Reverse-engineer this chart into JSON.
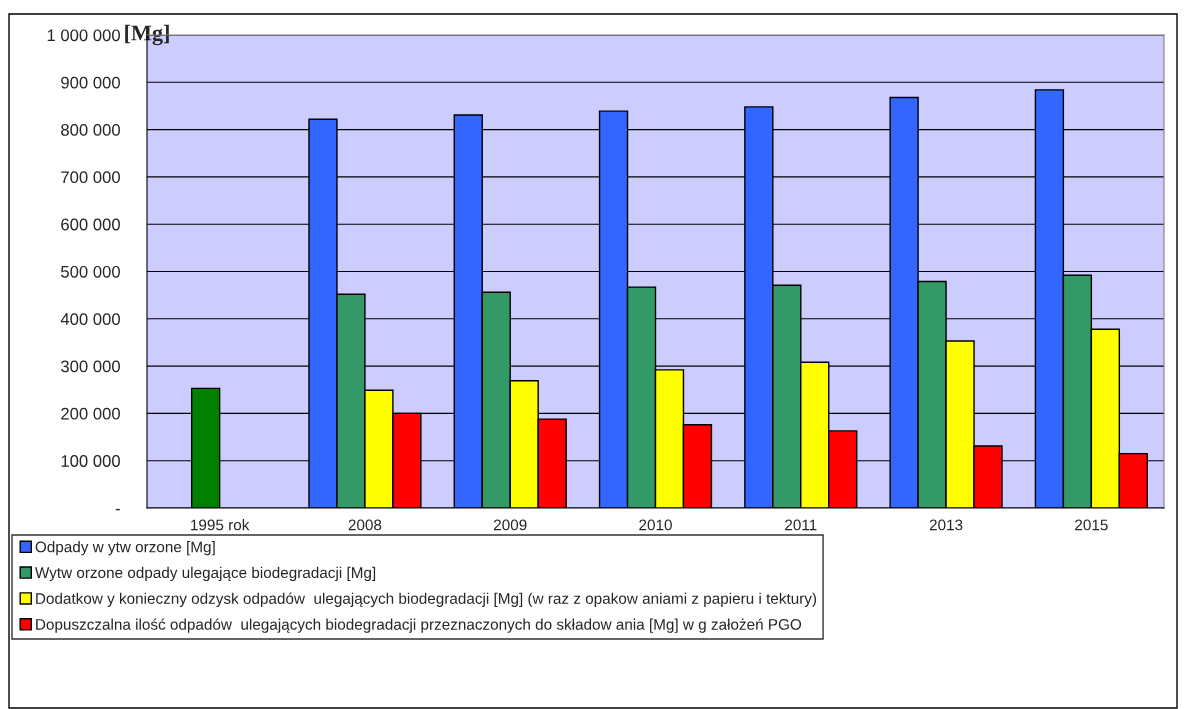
{
  "chart_data": {
    "type": "bar",
    "ylabel": "[Mg]",
    "categories": [
      "1995 rok",
      "2008",
      "2009",
      "2010",
      "2011",
      "2013",
      "2015"
    ],
    "series": [
      {
        "name": "Odpady w ytw orzone [Mg]",
        "color": "#3366ff",
        "values": [
          null,
          822000,
          831000,
          839000,
          848000,
          868000,
          884000
        ]
      },
      {
        "name": "Wytw orzone odpady ulegające biodegradacji [Mg]",
        "color": "#339966",
        "colors": [
          "#008000",
          "#339966",
          "#339966",
          "#339966",
          "#339966",
          "#339966",
          "#339966"
        ],
        "values": [
          253000,
          452000,
          456000,
          467000,
          471000,
          479000,
          492000
        ]
      },
      {
        "name": "Dodatkow y konieczny odzysk odpadów  ulegających biodegradacji [Mg] (w raz z opakow aniami z papieru i tektury)",
        "color": "#ffff00",
        "values": [
          null,
          249000,
          269000,
          292000,
          308000,
          353000,
          378000
        ]
      },
      {
        "name": "Dopuszczalna ilość odpadów  ulegających biodegradacji przeznaczonych do składow ania [Mg] w g założeń PGO",
        "color": "#ff0000",
        "values": [
          null,
          200000,
          188000,
          176000,
          163000,
          131000,
          115000
        ]
      }
    ],
    "ylim": [
      0,
      1000000
    ],
    "yticks": [
      {
        "value": 0,
        "label": "-"
      },
      {
        "value": 100000,
        "label": "100 000"
      },
      {
        "value": 200000,
        "label": "200 000"
      },
      {
        "value": 300000,
        "label": "300 000"
      },
      {
        "value": 400000,
        "label": "400 000"
      },
      {
        "value": 500000,
        "label": "500 000"
      },
      {
        "value": 600000,
        "label": "600 000"
      },
      {
        "value": 700000,
        "label": "700 000"
      },
      {
        "value": 800000,
        "label": "800 000"
      },
      {
        "value": 900000,
        "label": "900 000"
      },
      {
        "value": 1000000,
        "label": "1 000 000"
      }
    ],
    "grid": "y",
    "legend": "bottom"
  }
}
